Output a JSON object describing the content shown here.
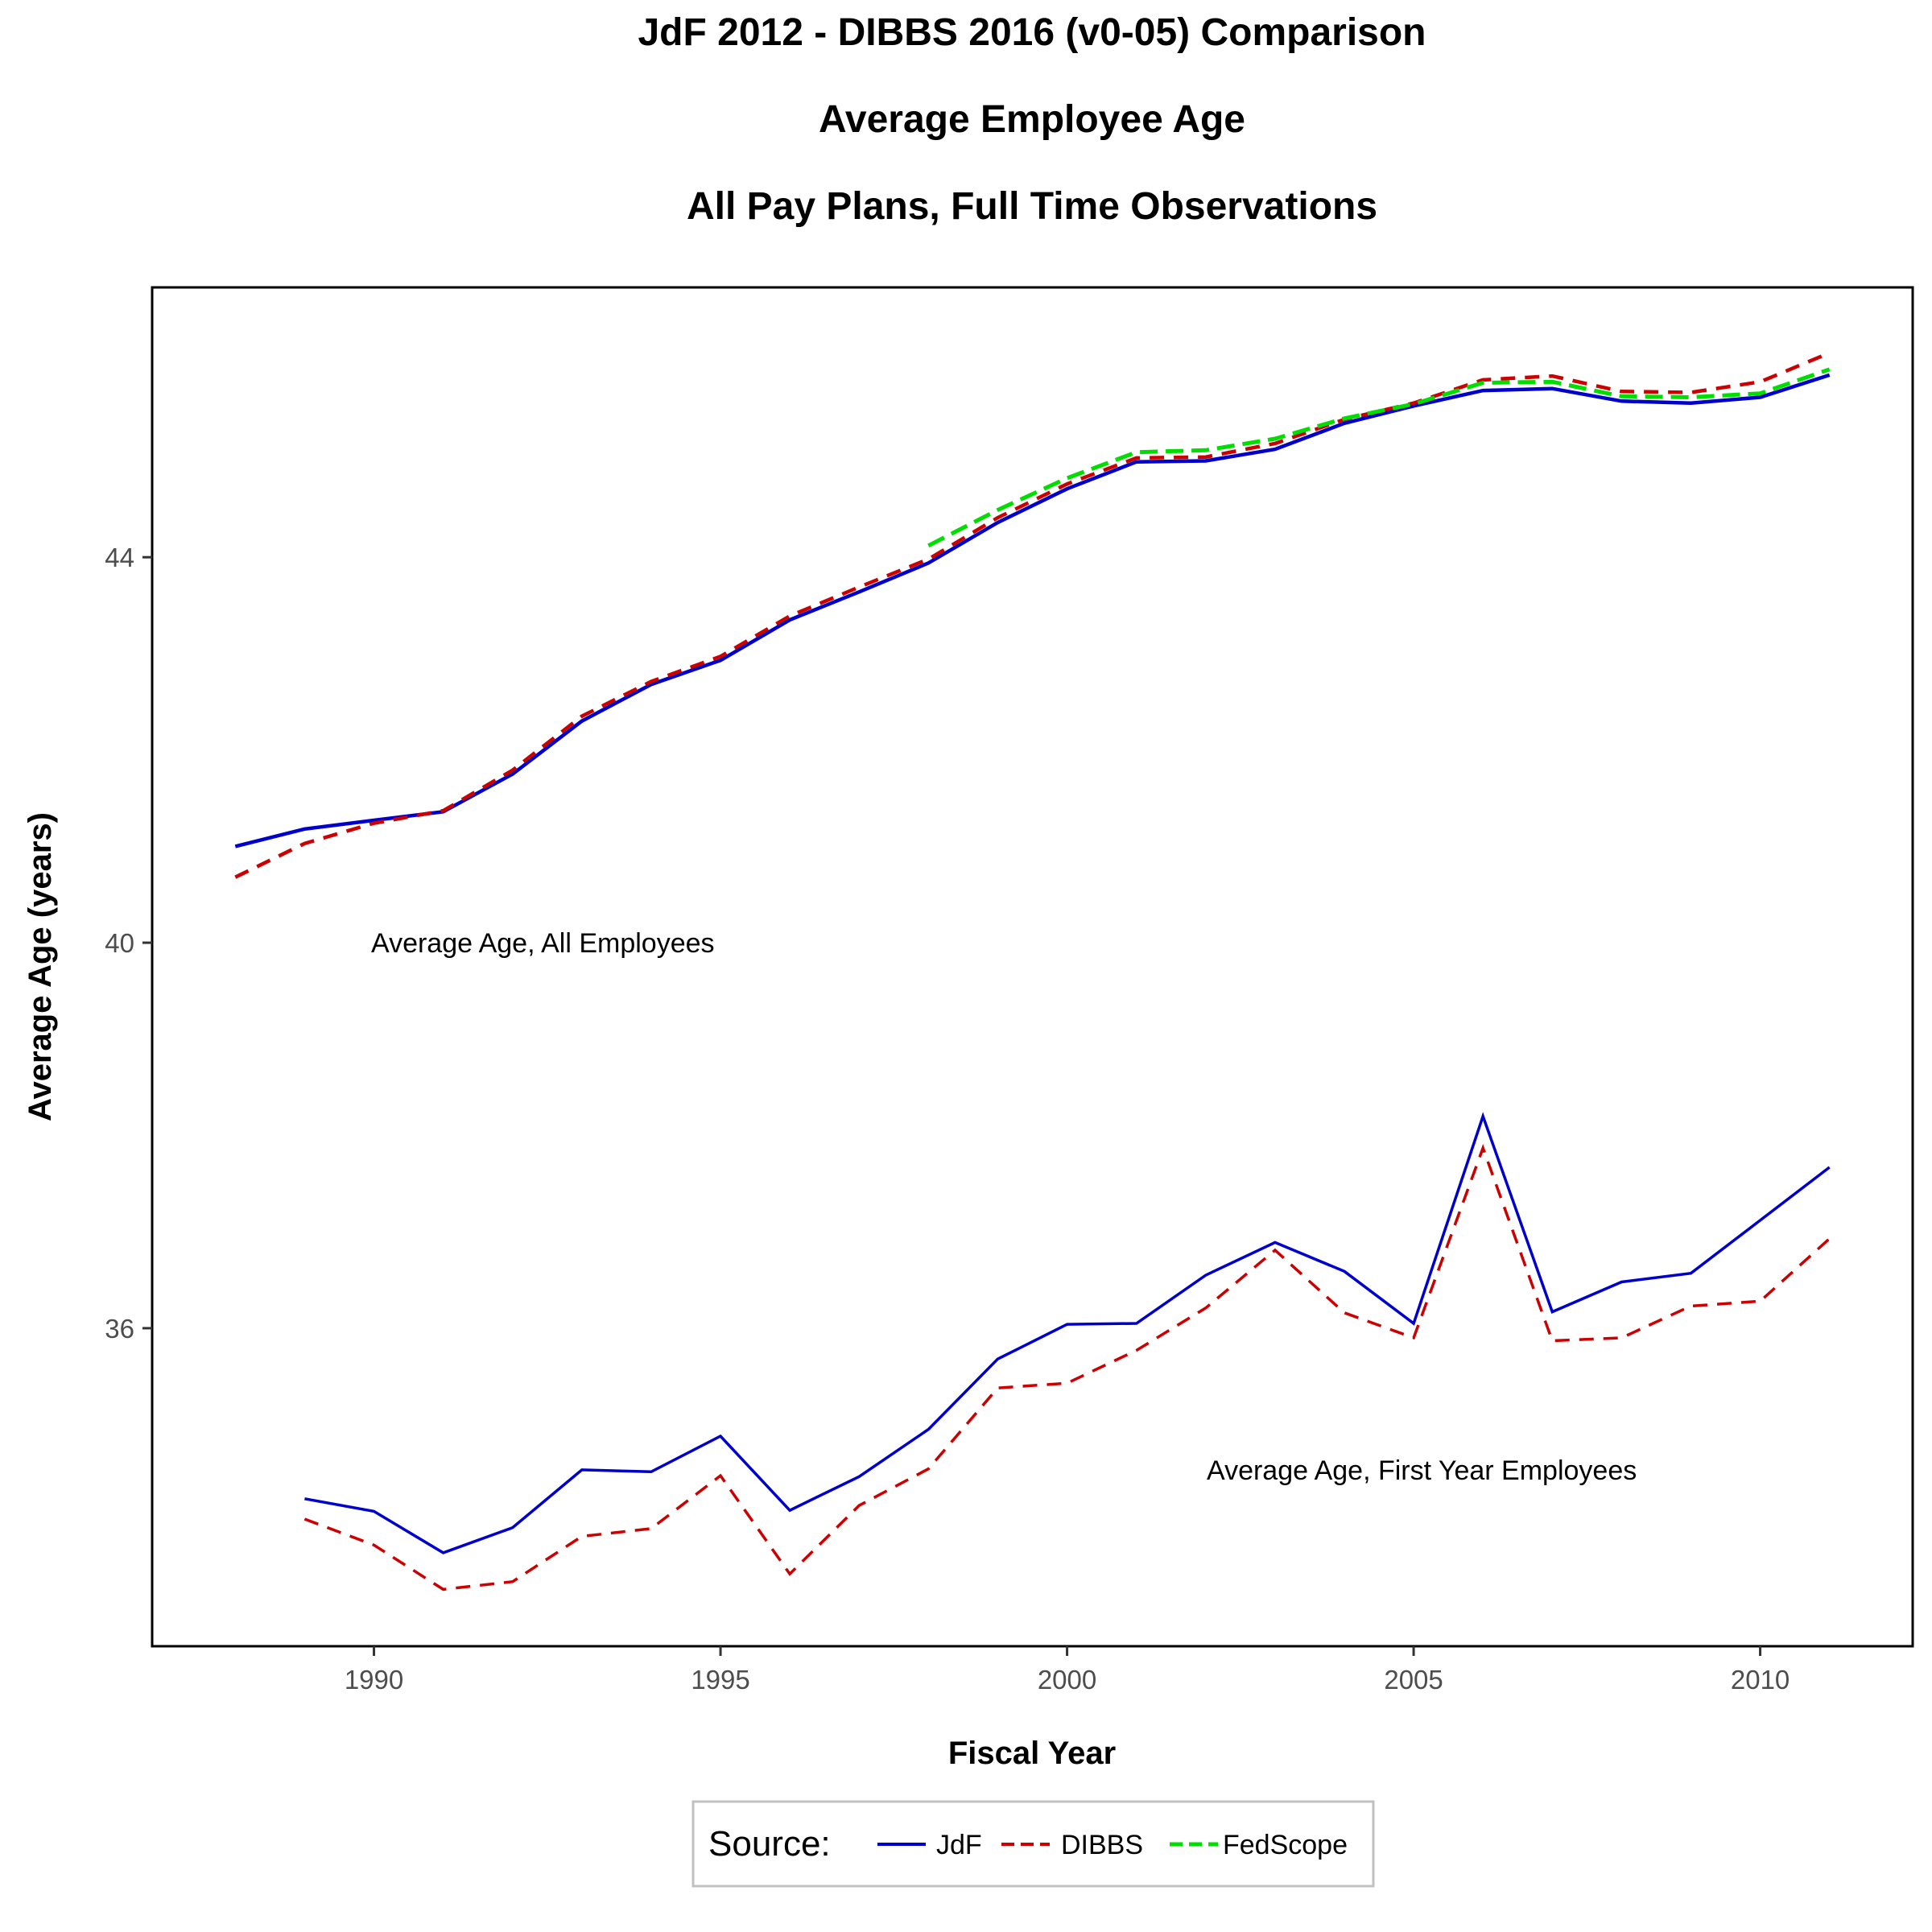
{
  "titles": [
    "JdF 2012 - DIBBS 2016 (v0-05) Comparison",
    "Average Employee Age",
    "All Pay Plans, Full Time Observations"
  ],
  "colors": {
    "JdF": "#0000cc",
    "DIBBS": "#cc0000",
    "FedScope": "#00dd00"
  },
  "legend": {
    "title": "Source:",
    "items": [
      {
        "name": "JdF",
        "color": "#0000cc",
        "dash": "solid"
      },
      {
        "name": "DIBBS",
        "color": "#cc0000",
        "dash": "dashed"
      },
      {
        "name": "FedScope",
        "color": "#00dd00",
        "dash": "dashed"
      }
    ]
  },
  "chart_data": {
    "type": "line",
    "xlabel": "Fiscal Year",
    "ylabel": "Average Age (years)",
    "xlim": [
      1986.8,
      2012.2
    ],
    "ylim": [
      32.7,
      46.8
    ],
    "xticks": [
      1990,
      1995,
      2000,
      2005,
      2010
    ],
    "yticks": [
      36,
      40,
      44
    ],
    "grid": false,
    "legend_position": "bottom",
    "annotations": [
      {
        "text": "Average Age, All Employees",
        "x": 1990,
        "y": 40
      },
      {
        "text": "Average Age, First Year Employees",
        "x": 2002,
        "y": 34.5
      }
    ],
    "series": [
      {
        "name": "JdF",
        "group": "all",
        "color": "#0000cc",
        "dash": "solid",
        "x": [
          1988,
          1989,
          1990,
          1991,
          1992,
          1993,
          1994,
          1995,
          1996,
          1997,
          1998,
          1999,
          2000,
          2001,
          2002,
          2003,
          2004,
          2005,
          2006,
          2007,
          2008,
          2009,
          2010,
          2011
        ],
        "y": [
          41.0,
          41.18,
          41.27,
          41.36,
          41.75,
          42.3,
          42.68,
          42.93,
          43.35,
          43.64,
          43.94,
          44.36,
          44.71,
          44.99,
          45.0,
          45.12,
          45.39,
          45.57,
          45.73,
          45.75,
          45.62,
          45.6,
          45.66,
          45.89
        ]
      },
      {
        "name": "DIBBS",
        "group": "all",
        "color": "#cc0000",
        "dash": "dashed",
        "x": [
          1988,
          1989,
          1990,
          1991,
          1992,
          1993,
          1994,
          1995,
          1996,
          1997,
          1998,
          1999,
          2000,
          2001,
          2002,
          2003,
          2004,
          2005,
          2006,
          2007,
          2008,
          2009,
          2010,
          2011
        ],
        "y": [
          40.68,
          41.03,
          41.24,
          41.37,
          41.79,
          42.35,
          42.71,
          42.97,
          43.39,
          43.69,
          43.98,
          44.41,
          44.76,
          45.03,
          45.04,
          45.18,
          45.43,
          45.6,
          45.84,
          45.88,
          45.72,
          45.71,
          45.82,
          46.12
        ]
      },
      {
        "name": "FedScope",
        "group": "all",
        "color": "#00dd00",
        "dash": "dashed",
        "x": [
          1998,
          1999,
          2000,
          2001,
          2002,
          2003,
          2004,
          2005,
          2006,
          2007,
          2008,
          2009,
          2010,
          2011
        ],
        "y": [
          44.12,
          44.49,
          44.82,
          45.09,
          45.11,
          45.23,
          45.44,
          45.59,
          45.81,
          45.82,
          45.67,
          45.66,
          45.7,
          45.95
        ]
      },
      {
        "name": "JdF",
        "group": "first_year",
        "color": "#0000cc",
        "dash": "solid",
        "x": [
          1989,
          1990,
          1991,
          1992,
          1993,
          1994,
          1995,
          1996,
          1997,
          1998,
          1999,
          2000,
          2001,
          2002,
          2003,
          2004,
          2005,
          2006,
          2007,
          2008,
          2009,
          2010,
          2011
        ],
        "y": [
          34.23,
          34.1,
          33.67,
          33.93,
          34.53,
          34.51,
          34.88,
          34.11,
          34.46,
          34.95,
          35.68,
          36.04,
          36.05,
          36.55,
          36.89,
          36.59,
          36.05,
          38.2,
          36.17,
          36.48,
          36.57,
          37.12,
          37.67
        ]
      },
      {
        "name": "DIBBS",
        "group": "first_year",
        "color": "#cc0000",
        "dash": "dashed",
        "x": [
          1989,
          1990,
          1991,
          1992,
          1993,
          1994,
          1995,
          1996,
          1997,
          1998,
          1999,
          2000,
          2001,
          2002,
          2003,
          2004,
          2005,
          2006,
          2007,
          2008,
          2009,
          2010,
          2011
        ],
        "y": [
          34.02,
          33.75,
          33.29,
          33.37,
          33.84,
          33.92,
          34.47,
          33.45,
          34.16,
          34.54,
          35.38,
          35.43,
          35.77,
          36.21,
          36.81,
          36.16,
          35.9,
          37.87,
          35.87,
          35.9,
          36.23,
          36.28,
          36.93
        ]
      }
    ]
  }
}
